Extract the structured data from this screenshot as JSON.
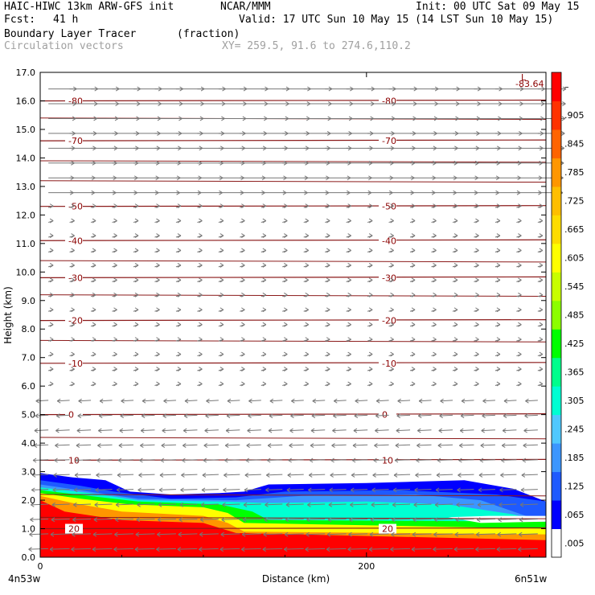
{
  "header": {
    "model": "HAIC-HIWC 13km ARW-GFS init",
    "org": "NCAR/MMM",
    "init": "Init: 00 UTC Sat 09 May 15",
    "fcst_label": "Fcst:",
    "fcst_value": "41 h",
    "valid": "Valid: 17 UTC Sun 10 May 15 (14 LST Sun 10 May 15)",
    "field1": "Boundary Layer Tracer",
    "field1_units": "(fraction)",
    "field2": "Circulation vectors",
    "xy": "XY= 259.5, 91.6 to 274.6,110.2"
  },
  "chart_data": {
    "type": "heatmap",
    "xlabel": "Distance (km)",
    "ylabel": "Height (km)",
    "xlim": [
      0,
      310
    ],
    "ylim": [
      0,
      17
    ],
    "x_ticks": [
      "0",
      "200"
    ],
    "y_ticks": [
      "0.0",
      "1.0",
      "2.0",
      "3.0",
      "4.0",
      "5.0",
      "6.0",
      "7.0",
      "8.0",
      "9.0",
      "10.0",
      "11.0",
      "12.0",
      "13.0",
      "14.0",
      "15.0",
      "16.0",
      "17.0"
    ],
    "endpoint_left": "4n53w",
    "endpoint_right": "6n51w",
    "colorbar": {
      "labels": [
        ".005",
        ".065",
        ".125",
        ".185",
        ".245",
        ".305",
        ".365",
        ".425",
        ".485",
        ".545",
        ".605",
        ".665",
        ".725",
        ".785",
        ".845",
        ".905",
        "–"
      ],
      "colors": [
        "#ffffff",
        "#0000ff",
        "#1e5aff",
        "#3c96ff",
        "#50c8ff",
        "#00ffd2",
        "#00ff8c",
        "#00ff00",
        "#8cff00",
        "#c8ff00",
        "#ffff00",
        "#ffdc00",
        "#ffbe00",
        "#ff9600",
        "#ff6400",
        "#ff3200",
        "#ff0000"
      ]
    },
    "temperature_contours": [
      {
        "label": "-80",
        "height_km": 16.0
      },
      {
        "label": "-70",
        "height_km": 14.6
      },
      {
        "label": "-50",
        "height_km": 12.3
      },
      {
        "label": "-40",
        "height_km": 11.1
      },
      {
        "label": "-30",
        "height_km": 9.8
      },
      {
        "label": "-20",
        "height_km": 8.3
      },
      {
        "label": "-10",
        "height_km": 6.8
      },
      {
        "label": "0",
        "height_km": 5.0
      },
      {
        "label": "10",
        "height_km": 3.4
      },
      {
        "label": "20",
        "height_km": 1.0
      }
    ],
    "min_annotation": {
      "label": "L",
      "value": "-83.64"
    }
  }
}
